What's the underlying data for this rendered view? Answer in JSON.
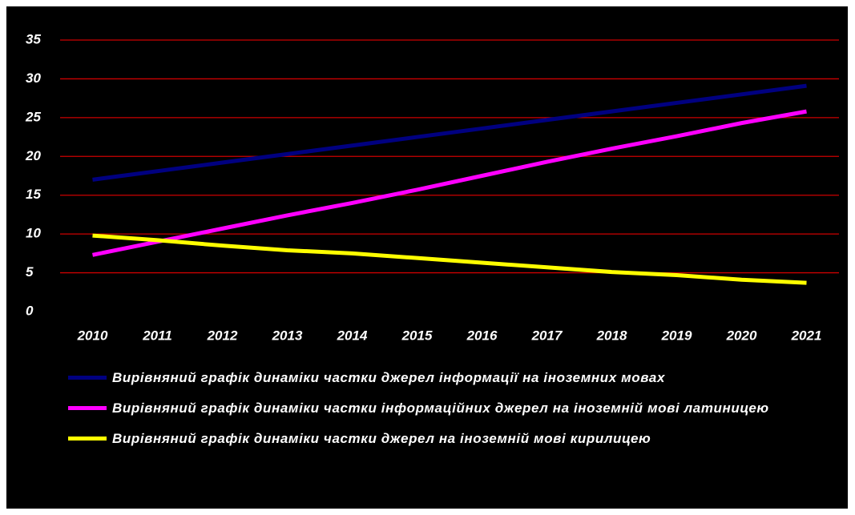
{
  "chart_data": {
    "type": "line",
    "categories": [
      "2010",
      "2011",
      "2012",
      "2013",
      "2014",
      "2015",
      "2016",
      "2017",
      "2018",
      "2019",
      "2020",
      "2021"
    ],
    "series": [
      {
        "name": "Вирівняний графік динаміки частки джерел інформації на іноземних мовах",
        "color": "#000080",
        "values": [
          17.0,
          18.1,
          19.2,
          20.3,
          21.4,
          22.5,
          23.6,
          24.7,
          25.8,
          26.9,
          28.0,
          29.1
        ]
      },
      {
        "name": "Вирівняний графік динаміки частки інформаційних джерел на іноземній мові латиницею",
        "color": "#ff00ff",
        "values": [
          7.3,
          9.0,
          10.7,
          12.4,
          14.0,
          15.7,
          17.5,
          19.3,
          21.0,
          22.6,
          24.3,
          25.8
        ]
      },
      {
        "name": "Вирівняний графік динаміки частки джерел на іноземній мові кирилицею",
        "color": "#ffff00",
        "values": [
          9.8,
          9.2,
          8.5,
          7.9,
          7.5,
          6.9,
          6.3,
          5.7,
          5.1,
          4.7,
          4.1,
          3.7
        ]
      }
    ],
    "ylim": [
      0,
      35
    ],
    "yticks": [
      0,
      5,
      10,
      15,
      20,
      25,
      30,
      35
    ],
    "grid": true,
    "grid_color": "#cc0000"
  }
}
